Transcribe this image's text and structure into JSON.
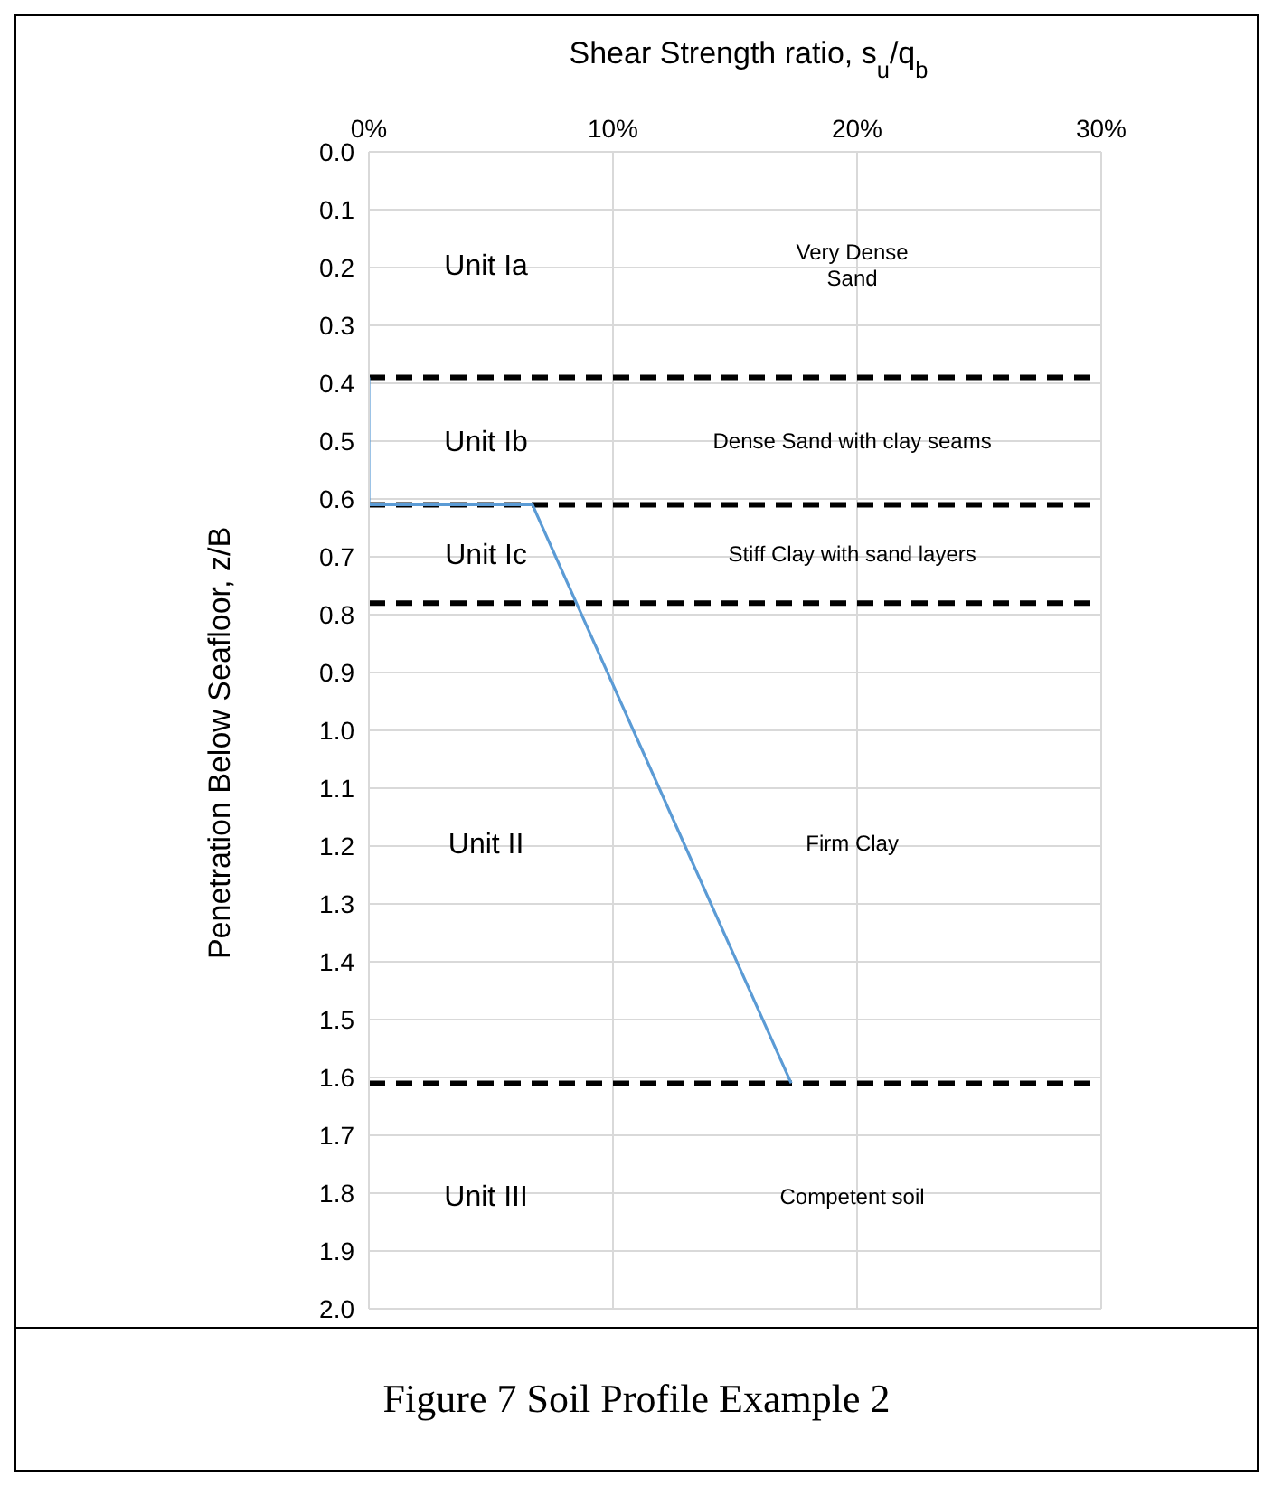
{
  "chart_data": {
    "type": "line",
    "title": "Figure 7 Soil Profile Example 2",
    "xlabel": "Shear Strength ratio, s$_{u}$/q$_{b}$",
    "ylabel": "Penetration Below Seafloor,  z/B",
    "series": [
      {
        "color": "#5b9bd5",
        "x": [
          0,
          0,
          6.7,
          17.3
        ],
        "values": [
          0.39,
          0.61,
          0.61,
          1.61
        ]
      }
    ],
    "xlim": [
      0,
      30
    ],
    "xticks": [
      {
        "value": 0,
        "label": "0%"
      },
      {
        "value": 10,
        "label": "10%"
      },
      {
        "value": 20,
        "label": "20%"
      },
      {
        "value": 30,
        "label": "30%"
      }
    ],
    "ylim": [
      2,
      0
    ],
    "yticks": [
      {
        "value": 0,
        "label": "0.0"
      },
      0.1,
      0.2,
      0.3,
      0.4,
      0.5,
      0.6,
      0.7,
      0.8,
      0.9,
      {
        "value": 1,
        "label": "1.0"
      },
      1.1,
      1.2,
      1.3,
      1.4,
      1.5,
      1.6,
      1.7,
      1.8,
      1.9,
      {
        "value": 2,
        "label": "2.0"
      }
    ],
    "ref_lines": [
      {
        "axis": "y",
        "value": 0.39,
        "color": "#000000",
        "line_style": "dashed"
      },
      {
        "axis": "y",
        "value": 0.61,
        "color": "#000000",
        "line_style": "dashed"
      },
      {
        "axis": "y",
        "value": 0.78,
        "color": "#000000",
        "line_style": "dashed"
      },
      {
        "axis": "y",
        "value": 1.61,
        "color": "#000000",
        "line_style": "dashed"
      }
    ],
    "annotations": [
      "Unit Ia",
      "Very Dense\nSand",
      "Unit Ib",
      "Dense Sand with clay seams",
      "Unit Ic",
      "Stiff Clay with sand layers",
      "Unit II",
      "Firm Clay",
      "Unit III",
      "Competent soil"
    ],
    "grid": true,
    "marker": "none",
    "line_style": "solid",
    "legend": false
  }
}
